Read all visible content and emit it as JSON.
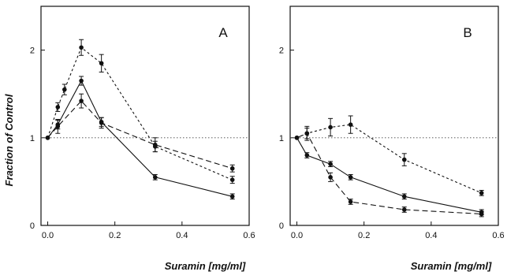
{
  "figure": {
    "ylabel": "Fraction of Control",
    "xlabel": "Suramin [mg/ml]"
  },
  "chart_data": [
    {
      "type": "line",
      "panel": "A",
      "xlabel": "Suramin [mg/ml]",
      "ylabel": "Fraction of Control",
      "xlim": [
        -0.02,
        0.6
      ],
      "ylim": [
        0,
        2.5
      ],
      "xticks": [
        "0.0",
        "0.2",
        "0.4",
        "0.6"
      ],
      "yticks": [
        "0",
        "1",
        "2"
      ],
      "reference_line": {
        "y": 1,
        "style": "dotted"
      },
      "series": [
        {
          "style": "solid",
          "x": [
            0,
            0.03,
            0.1,
            0.16,
            0.32,
            0.55
          ],
          "y": [
            1.0,
            1.15,
            1.65,
            1.18,
            0.55,
            0.33
          ],
          "err": [
            0.0,
            0.05,
            0.05,
            0.05,
            0.03,
            0.03
          ]
        },
        {
          "style": "dashed",
          "x": [
            0,
            0.03,
            0.1,
            0.16,
            0.32,
            0.55
          ],
          "y": [
            1.0,
            1.13,
            1.42,
            1.17,
            0.92,
            0.65
          ],
          "err": [
            0.0,
            0.08,
            0.08,
            0.06,
            0.08,
            0.04
          ]
        },
        {
          "style": "dotted",
          "x": [
            0,
            0.03,
            0.05,
            0.1,
            0.16,
            0.32,
            0.55
          ],
          "y": [
            1.0,
            1.35,
            1.55,
            2.03,
            1.85,
            0.9,
            0.52
          ],
          "err": [
            0.0,
            0.05,
            0.06,
            0.09,
            0.1,
            0.06,
            0.04
          ]
        }
      ],
      "grid": false
    },
    {
      "type": "line",
      "panel": "B",
      "xlabel": "Suramin [mg/ml]",
      "ylabel": "",
      "xlim": [
        -0.02,
        0.6
      ],
      "ylim": [
        0,
        2.5
      ],
      "xticks": [
        "0.0",
        "0.2",
        "0.4",
        "0.6"
      ],
      "yticks": [
        "0",
        "1",
        "2"
      ],
      "reference_line": {
        "y": 1,
        "style": "dotted"
      },
      "series": [
        {
          "style": "solid",
          "x": [
            0,
            0.03,
            0.1,
            0.16,
            0.32,
            0.55
          ],
          "y": [
            1.0,
            0.8,
            0.7,
            0.55,
            0.33,
            0.15
          ],
          "err": [
            0.0,
            0.03,
            0.03,
            0.03,
            0.03,
            0.03
          ]
        },
        {
          "style": "dashed",
          "x": [
            0,
            0.03,
            0.1,
            0.16,
            0.32,
            0.55
          ],
          "y": [
            1.0,
            1.05,
            0.55,
            0.27,
            0.18,
            0.13
          ],
          "err": [
            0.0,
            0.06,
            0.05,
            0.03,
            0.03,
            0.03
          ]
        },
        {
          "style": "dotted",
          "x": [
            0,
            0.03,
            0.1,
            0.16,
            0.32,
            0.55
          ],
          "y": [
            1.0,
            1.05,
            1.12,
            1.15,
            0.75,
            0.37
          ],
          "err": [
            0.0,
            0.08,
            0.1,
            0.1,
            0.07,
            0.03
          ]
        }
      ],
      "grid": false
    }
  ]
}
